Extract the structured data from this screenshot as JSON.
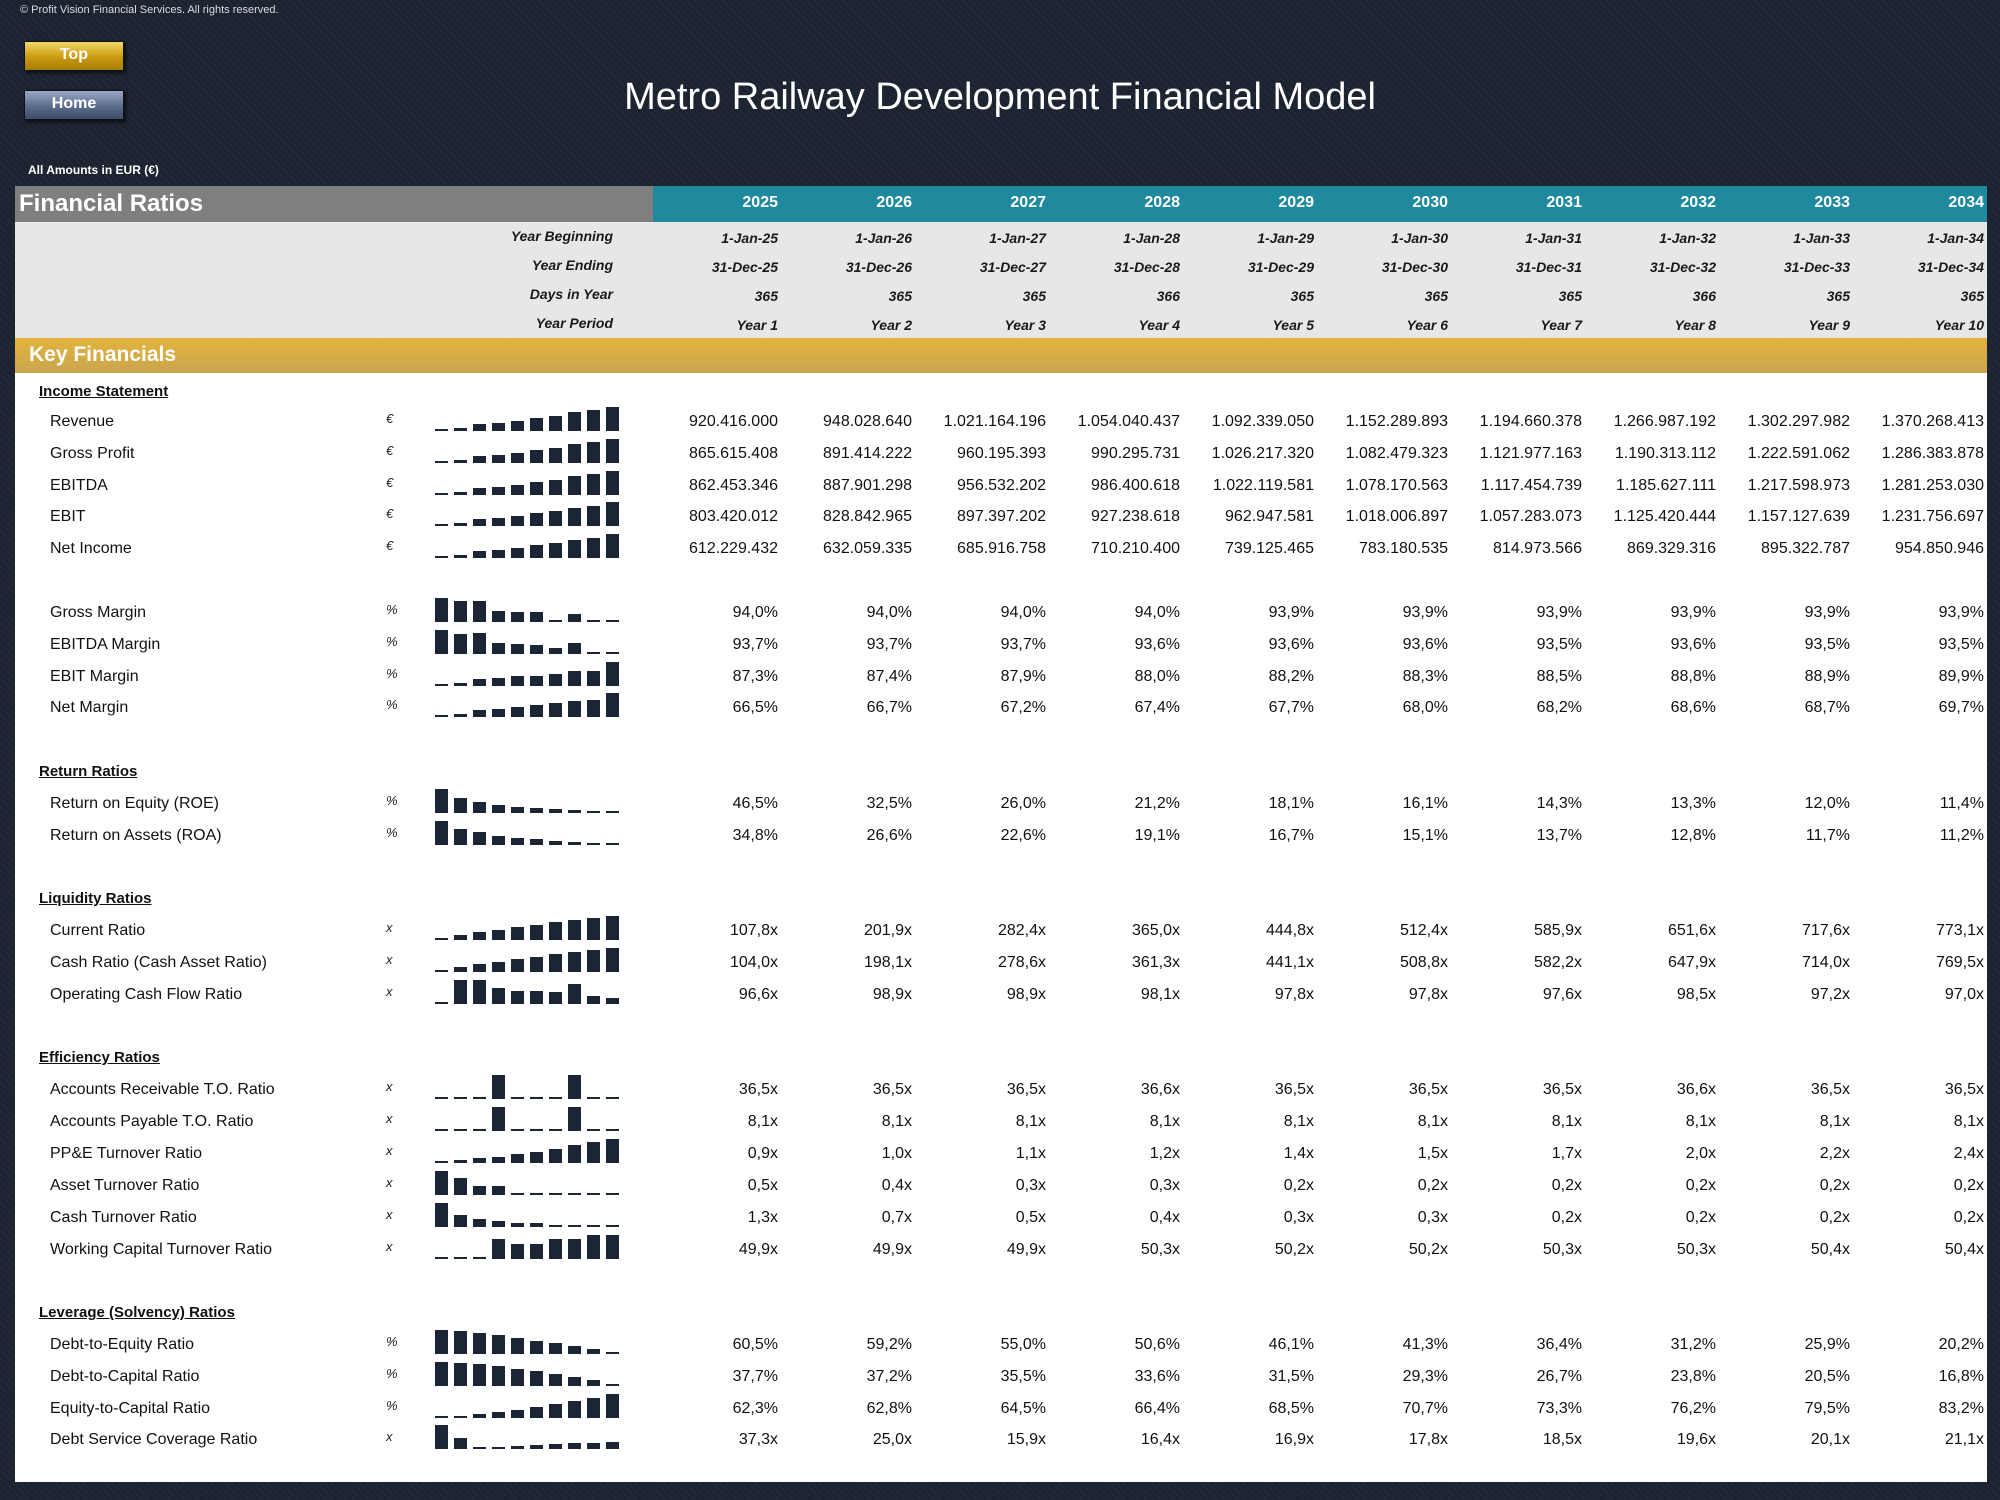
{
  "copyright": "© Profit Vision Financial Services. All rights reserved.",
  "nav": {
    "top_label": "Top",
    "home_label": "Home"
  },
  "title": "Metro Railway Development Financial Model",
  "amounts_note": "All Amounts in  EUR (€)",
  "header": {
    "title": "Financial Ratios",
    "years": [
      "2025",
      "2026",
      "2027",
      "2028",
      "2029",
      "2030",
      "2031",
      "2032",
      "2033",
      "2034"
    ]
  },
  "meta_rows": [
    {
      "label": "Year Beginning",
      "values": [
        "1-Jan-25",
        "1-Jan-26",
        "1-Jan-27",
        "1-Jan-28",
        "1-Jan-29",
        "1-Jan-30",
        "1-Jan-31",
        "1-Jan-32",
        "1-Jan-33",
        "1-Jan-34"
      ]
    },
    {
      "label": "Year Ending",
      "values": [
        "31-Dec-25",
        "31-Dec-26",
        "31-Dec-27",
        "31-Dec-28",
        "31-Dec-29",
        "31-Dec-30",
        "31-Dec-31",
        "31-Dec-32",
        "31-Dec-33",
        "31-Dec-34"
      ]
    },
    {
      "label": "Days in Year",
      "values": [
        "365",
        "365",
        "365",
        "366",
        "365",
        "365",
        "365",
        "366",
        "365",
        "365"
      ]
    },
    {
      "label": "Year Period",
      "values": [
        "Year 1",
        "Year 2",
        "Year 3",
        "Year 4",
        "Year 5",
        "Year 6",
        "Year 7",
        "Year 8",
        "Year 9",
        "Year 10"
      ]
    }
  ],
  "key_financials_title": "Key Financials",
  "sections": [
    {
      "title": "Income Statement",
      "rows": [
        {
          "label": "Revenue",
          "unit": "€",
          "values": [
            "920.416.000",
            "948.028.640",
            "1.021.164.196",
            "1.054.040.437",
            "1.092.339.050",
            "1.152.289.893",
            "1.194.660.378",
            "1.266.987.192",
            "1.302.297.982",
            "1.370.268.413"
          ],
          "spark": [
            920416000,
            948028640,
            1021164196,
            1054040437,
            1092339050,
            1152289893,
            1194660378,
            1266987192,
            1302297982,
            1370268413
          ]
        },
        {
          "label": "Gross Profit",
          "unit": "€",
          "values": [
            "865.615.408",
            "891.414.222",
            "960.195.393",
            "990.295.731",
            "1.026.217.320",
            "1.082.479.323",
            "1.121.977.163",
            "1.190.313.112",
            "1.222.591.062",
            "1.286.383.878"
          ],
          "spark": [
            865615408,
            891414222,
            960195393,
            990295731,
            1026217320,
            1082479323,
            1121977163,
            1190313112,
            1222591062,
            1286383878
          ]
        },
        {
          "label": "EBITDA",
          "unit": "€",
          "values": [
            "862.453.346",
            "887.901.298",
            "956.532.202",
            "986.400.618",
            "1.022.119.581",
            "1.078.170.563",
            "1.117.454.739",
            "1.185.627.111",
            "1.217.598.973",
            "1.281.253.030"
          ],
          "spark": [
            862453346,
            887901298,
            956532202,
            986400618,
            1022119581,
            1078170563,
            1117454739,
            1185627111,
            1217598973,
            1281253030
          ]
        },
        {
          "label": "EBIT",
          "unit": "€",
          "values": [
            "803.420.012",
            "828.842.965",
            "897.397.202",
            "927.238.618",
            "962.947.581",
            "1.018.006.897",
            "1.057.283.073",
            "1.125.420.444",
            "1.157.127.639",
            "1.231.756.697"
          ],
          "spark": [
            803420012,
            828842965,
            897397202,
            927238618,
            962947581,
            1018006897,
            1057283073,
            1125420444,
            1157127639,
            1231756697
          ]
        },
        {
          "label": "Net Income",
          "unit": "€",
          "values": [
            "612.229.432",
            "632.059.335",
            "685.916.758",
            "710.210.400",
            "739.125.465",
            "783.180.535",
            "814.973.566",
            "869.329.316",
            "895.322.787",
            "954.850.946"
          ],
          "spark": [
            612229432,
            632059335,
            685916758,
            710210400,
            739125465,
            783180535,
            814973566,
            869329316,
            895322787,
            954850946
          ]
        }
      ]
    },
    {
      "title": "",
      "rows": [
        {
          "label": "Gross Margin",
          "unit": "%",
          "values": [
            "94,0%",
            "94,0%",
            "94,0%",
            "94,0%",
            "93,9%",
            "93,9%",
            "93,9%",
            "93,9%",
            "93,9%",
            "93,9%"
          ],
          "spark": [
            94.05,
            94.03,
            94.03,
            93.95,
            93.94,
            93.94,
            93.88,
            93.93,
            93.88,
            93.88
          ]
        },
        {
          "label": "EBITDA Margin",
          "unit": "%",
          "values": [
            "93,7%",
            "93,7%",
            "93,7%",
            "93,6%",
            "93,6%",
            "93,6%",
            "93,5%",
            "93,6%",
            "93,5%",
            "93,5%"
          ],
          "spark": [
            93.7,
            93.66,
            93.67,
            93.58,
            93.57,
            93.56,
            93.54,
            93.58,
            93.5,
            93.5
          ]
        },
        {
          "label": "EBIT Margin",
          "unit": "%",
          "values": [
            "87,3%",
            "87,4%",
            "87,9%",
            "88,0%",
            "88,2%",
            "88,3%",
            "88,5%",
            "88,8%",
            "88,9%",
            "89,9%"
          ],
          "spark": [
            87.3,
            87.4,
            87.9,
            88.0,
            88.2,
            88.3,
            88.5,
            88.8,
            88.9,
            89.9
          ]
        },
        {
          "label": "Net Margin",
          "unit": "%",
          "values": [
            "66,5%",
            "66,7%",
            "67,2%",
            "67,4%",
            "67,7%",
            "68,0%",
            "68,2%",
            "68,6%",
            "68,7%",
            "69,7%"
          ],
          "spark": [
            66.5,
            66.7,
            67.2,
            67.4,
            67.7,
            68.0,
            68.2,
            68.6,
            68.7,
            69.7
          ]
        }
      ]
    },
    {
      "title": "Return Ratios",
      "rows": [
        {
          "label": "Return on Equity (ROE)",
          "unit": "%",
          "values": [
            "46,5%",
            "32,5%",
            "26,0%",
            "21,2%",
            "18,1%",
            "16,1%",
            "14,3%",
            "13,3%",
            "12,0%",
            "11,4%"
          ],
          "spark": [
            46.5,
            32.5,
            26.0,
            21.2,
            18.1,
            16.1,
            14.3,
            13.3,
            12.0,
            11.4
          ]
        },
        {
          "label": "Return on Assets (ROA)",
          "unit": "%",
          "values": [
            "34,8%",
            "26,6%",
            "22,6%",
            "19,1%",
            "16,7%",
            "15,1%",
            "13,7%",
            "12,8%",
            "11,7%",
            "11,2%"
          ],
          "spark": [
            34.8,
            26.6,
            22.6,
            19.1,
            16.7,
            15.1,
            13.7,
            12.8,
            11.7,
            11.2
          ]
        }
      ]
    },
    {
      "title": "Liquidity Ratios",
      "rows": [
        {
          "label": "Current Ratio",
          "unit": "x",
          "values": [
            "107,8x",
            "201,9x",
            "282,4x",
            "365,0x",
            "444,8x",
            "512,4x",
            "585,9x",
            "651,6x",
            "717,6x",
            "773,1x"
          ],
          "spark": [
            107.8,
            201.9,
            282.4,
            365.0,
            444.8,
            512.4,
            585.9,
            651.6,
            717.6,
            773.1
          ]
        },
        {
          "label": "Cash Ratio (Cash Asset Ratio)",
          "unit": "x",
          "values": [
            "104,0x",
            "198,1x",
            "278,6x",
            "361,3x",
            "441,1x",
            "508,8x",
            "582,2x",
            "647,9x",
            "714,0x",
            "769,5x"
          ],
          "spark": [
            104.0,
            198.1,
            278.6,
            361.3,
            441.1,
            508.8,
            582.2,
            647.9,
            714.0,
            769.5
          ]
        },
        {
          "label": "Operating Cash Flow Ratio",
          "unit": "x",
          "values": [
            "96,6x",
            "98,9x",
            "98,9x",
            "98,1x",
            "97,8x",
            "97,8x",
            "97,6x",
            "98,5x",
            "97,2x",
            "97,0x"
          ],
          "spark": [
            96.6,
            98.9,
            98.9,
            98.1,
            97.8,
            97.8,
            97.6,
            98.5,
            97.2,
            97.0
          ]
        }
      ]
    },
    {
      "title": "Efficiency Ratios",
      "rows": [
        {
          "label": "Accounts Receivable T.O. Ratio",
          "unit": "x",
          "values": [
            "36,5x",
            "36,5x",
            "36,5x",
            "36,6x",
            "36,5x",
            "36,5x",
            "36,5x",
            "36,6x",
            "36,5x",
            "36,5x"
          ],
          "spark": [
            36.5,
            36.5,
            36.5,
            36.6,
            36.5,
            36.5,
            36.5,
            36.6,
            36.5,
            36.5
          ]
        },
        {
          "label": "Accounts Payable T.O. Ratio",
          "unit": "x",
          "values": [
            "8,1x",
            "8,1x",
            "8,1x",
            "8,1x",
            "8,1x",
            "8,1x",
            "8,1x",
            "8,1x",
            "8,1x",
            "8,1x"
          ],
          "spark": [
            8.1,
            8.1,
            8.1,
            8.12,
            8.1,
            8.1,
            8.1,
            8.12,
            8.1,
            8.1
          ]
        },
        {
          "label": "PP&E Turnover Ratio",
          "unit": "x",
          "values": [
            "0,9x",
            "1,0x",
            "1,1x",
            "1,2x",
            "1,4x",
            "1,5x",
            "1,7x",
            "2,0x",
            "2,2x",
            "2,4x"
          ],
          "spark": [
            0.9,
            1.0,
            1.1,
            1.2,
            1.4,
            1.5,
            1.7,
            2.0,
            2.2,
            2.4
          ]
        },
        {
          "label": "Asset Turnover Ratio",
          "unit": "x",
          "values": [
            "0,5x",
            "0,4x",
            "0,3x",
            "0,3x",
            "0,2x",
            "0,2x",
            "0,2x",
            "0,2x",
            "0,2x",
            "0,2x"
          ],
          "spark": [
            0.5,
            0.4,
            0.3,
            0.3,
            0.2,
            0.2,
            0.2,
            0.2,
            0.2,
            0.2
          ]
        },
        {
          "label": "Cash Turnover Ratio",
          "unit": "x",
          "values": [
            "1,3x",
            "0,7x",
            "0,5x",
            "0,4x",
            "0,3x",
            "0,3x",
            "0,2x",
            "0,2x",
            "0,2x",
            "0,2x"
          ],
          "spark": [
            1.3,
            0.7,
            0.5,
            0.4,
            0.3,
            0.3,
            0.2,
            0.2,
            0.2,
            0.2
          ]
        },
        {
          "label": "Working Capital Turnover Ratio",
          "unit": "x",
          "values": [
            "49,9x",
            "49,9x",
            "49,9x",
            "50,3x",
            "50,2x",
            "50,2x",
            "50,3x",
            "50,3x",
            "50,4x",
            "50,4x"
          ],
          "spark": [
            49.9,
            49.9,
            49.9,
            50.3,
            50.2,
            50.2,
            50.3,
            50.3,
            50.4,
            50.4
          ]
        }
      ]
    },
    {
      "title": "Leverage (Solvency) Ratios",
      "rows": [
        {
          "label": "Debt-to-Equity Ratio",
          "unit": "%",
          "values": [
            "60,5%",
            "59,2%",
            "55,0%",
            "50,6%",
            "46,1%",
            "41,3%",
            "36,4%",
            "31,2%",
            "25,9%",
            "20,2%"
          ],
          "spark": [
            60.5,
            59.2,
            55.0,
            50.6,
            46.1,
            41.3,
            36.4,
            31.2,
            25.9,
            20.2
          ]
        },
        {
          "label": "Debt-to-Capital Ratio",
          "unit": "%",
          "values": [
            "37,7%",
            "37,2%",
            "35,5%",
            "33,6%",
            "31,5%",
            "29,3%",
            "26,7%",
            "23,8%",
            "20,5%",
            "16,8%"
          ],
          "spark": [
            37.7,
            37.2,
            35.5,
            33.6,
            31.5,
            29.3,
            26.7,
            23.8,
            20.5,
            16.8
          ]
        },
        {
          "label": "Equity-to-Capital Ratio",
          "unit": "%",
          "values": [
            "62,3%",
            "62,8%",
            "64,5%",
            "66,4%",
            "68,5%",
            "70,7%",
            "73,3%",
            "76,2%",
            "79,5%",
            "83,2%"
          ],
          "spark": [
            62.3,
            62.8,
            64.5,
            66.4,
            68.5,
            70.7,
            73.3,
            76.2,
            79.5,
            83.2
          ]
        },
        {
          "label": "Debt Service Coverage Ratio",
          "unit": "x",
          "values": [
            "37,3x",
            "25,0x",
            "15,9x",
            "16,4x",
            "16,9x",
            "17,8x",
            "18,5x",
            "19,6x",
            "20,1x",
            "21,1x"
          ],
          "spark": [
            37.3,
            25.0,
            15.9,
            16.4,
            16.9,
            17.8,
            18.5,
            19.6,
            20.1,
            21.1
          ]
        }
      ]
    }
  ]
}
